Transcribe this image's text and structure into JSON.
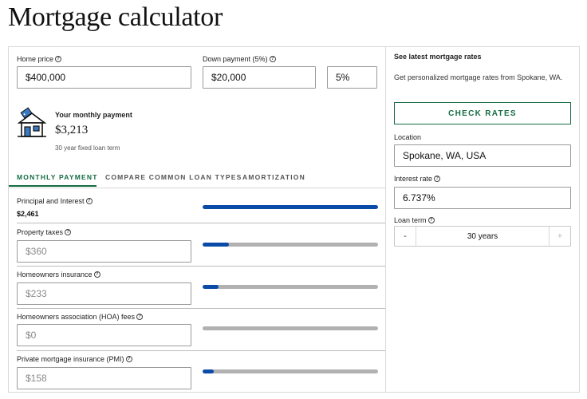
{
  "page": {
    "title": "Mortgage calculator"
  },
  "calculator": {
    "home_price": {
      "label": "Home price",
      "value": "$400,000"
    },
    "down_payment": {
      "label": "Down payment (5%)",
      "amount": "$20,000",
      "percent": "5%"
    },
    "monthly": {
      "title": "Your monthly payment",
      "amount": "$3,213",
      "note": "30 year fixed loan term"
    },
    "tabs": [
      {
        "label": "MONTHLY PAYMENT",
        "active": true
      },
      {
        "label": "COMPARE COMMON LOAN TYPES",
        "active": false
      },
      {
        "label": "AMORTIZATION",
        "active": false
      }
    ],
    "breakdown": {
      "principal_interest": {
        "label": "Principal and Interest",
        "value": "$2,461",
        "fill": 1.0
      },
      "property_taxes": {
        "label": "Property taxes",
        "value": "$360",
        "fill": 0.15
      },
      "homeowners_insurance": {
        "label": "Homeowners insurance",
        "value": "$233",
        "fill": 0.09
      },
      "hoa_fees": {
        "label": "Homeowners association (HOA) fees",
        "value": "$0",
        "fill": 0.0
      },
      "pmi": {
        "label": "Private mortgage insurance (PMI)",
        "value": "$158",
        "fill": 0.065
      }
    },
    "colors": {
      "accent": "#146c43",
      "bar_fill": "#0a4ba8",
      "bar_track": "#b1b1b1"
    }
  },
  "rates": {
    "heading": "See latest mortgage rates",
    "description": "Get personalized mortgage rates from Spokane, WA.",
    "button_label": "CHECK RATES",
    "location": {
      "label": "Location",
      "value": "Spokane, WA, USA"
    },
    "interest_rate": {
      "label": "Interest rate",
      "value": "6.737%"
    },
    "loan_term": {
      "label": "Loan term",
      "value": "30 years",
      "minus": "-",
      "plus": "+"
    }
  }
}
